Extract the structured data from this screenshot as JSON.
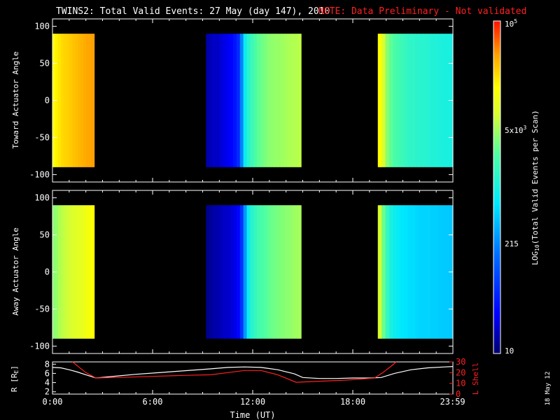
{
  "title": "TWINS2: Total Valid Events: 27 May (day 147), 2010",
  "note": "NOTE: Data Preliminary - Not validated",
  "date_stamp": "18 May 12",
  "colorbar": {
    "label": "LOG10(Total Valid Events per Scan)",
    "label_base": "LOG",
    "label_sub": "10",
    "label_rest": "(Total Valid Events per Scan)",
    "tick_labels": [
      "10",
      "215",
      "5x10^3",
      "10^5"
    ],
    "tick_values": [
      10,
      215,
      5000,
      100000
    ],
    "range": [
      10,
      100000
    ],
    "scale": "log"
  },
  "chart_data": [
    {
      "type": "heatmap",
      "name": "toward",
      "ylabel": "Toward Actuator Angle",
      "xlim": [
        0,
        24
      ],
      "ylim": [
        -110,
        110
      ],
      "y_ticks": [
        100,
        50,
        0,
        -50,
        -100
      ],
      "data_y_range": [
        -90,
        90
      ],
      "blocks": [
        {
          "x_start": 0.0,
          "x_end": 2.5,
          "log_values": [
            4.2,
            4.25,
            4.3,
            4.35,
            4.38,
            4.4,
            4.42,
            4.45,
            4.47,
            4.5,
            4.52,
            4.55,
            4.57,
            4.58,
            4.6
          ]
        },
        {
          "x_start": 9.2,
          "x_end": 14.9,
          "log_values": [
            1.2,
            1.25,
            1.3,
            1.28,
            1.35,
            1.4,
            1.45,
            1.5,
            1.6,
            1.75,
            2.3,
            2.9,
            3.1,
            3.25,
            3.35,
            3.45,
            3.5,
            3.55,
            3.6,
            3.62,
            3.65,
            3.65,
            3.68,
            3.7,
            3.72,
            3.74,
            3.75,
            3.78
          ]
        },
        {
          "x_start": 19.5,
          "x_end": 24.0,
          "log_values": [
            4.2,
            3.9,
            3.6,
            3.45,
            3.35,
            3.3,
            3.25,
            3.2,
            3.15,
            3.15,
            3.12,
            3.1,
            3.1,
            3.08,
            3.05,
            3.05,
            3.02,
            3.0,
            3.0,
            2.98
          ]
        }
      ]
    },
    {
      "type": "heatmap",
      "name": "away",
      "ylabel": "Away Actuator Angle",
      "xlim": [
        0,
        24
      ],
      "ylim": [
        -110,
        110
      ],
      "y_ticks": [
        100,
        50,
        0,
        -50,
        -100
      ],
      "data_y_range": [
        -90,
        90
      ],
      "blocks": [
        {
          "x_start": 0.0,
          "x_end": 2.5,
          "log_values": [
            3.6,
            3.65,
            3.72,
            3.78,
            3.82,
            3.85,
            3.88,
            3.92,
            3.95,
            3.98,
            4.0,
            4.05,
            4.1,
            4.15,
            4.2
          ]
        },
        {
          "x_start": 9.2,
          "x_end": 14.9,
          "log_values": [
            1.1,
            1.15,
            1.2,
            1.2,
            1.25,
            1.3,
            1.3,
            1.35,
            1.4,
            1.5,
            1.8,
            2.4,
            2.9,
            3.1,
            3.2,
            3.3,
            3.35,
            3.4,
            3.45,
            3.5,
            3.52,
            3.55,
            3.58,
            3.6,
            3.62,
            3.65,
            3.68,
            3.7
          ]
        },
        {
          "x_start": 19.5,
          "x_end": 24.0,
          "log_values": [
            3.9,
            3.5,
            3.2,
            3.0,
            2.9,
            2.85,
            2.8,
            2.78,
            2.75,
            2.75,
            2.72,
            2.7,
            2.7,
            2.7,
            2.68,
            2.68,
            2.66,
            2.65,
            2.65,
            2.64
          ]
        }
      ]
    },
    {
      "type": "line",
      "name": "orbit",
      "ylabel_left": "R [RE]",
      "ylabel_left_base": "R [R",
      "ylabel_left_sub": "E",
      "ylabel_left_end": "]",
      "ylabel_right": "L Shell",
      "xlabel": "Time (UT)",
      "xlim": [
        0,
        24
      ],
      "x_ticks": [
        0,
        6,
        12,
        18,
        23.983
      ],
      "x_tick_labels": [
        "0:00",
        "6:00",
        "12:00",
        "18:00",
        "23:59"
      ],
      "ylim_left": [
        1.5,
        8.5
      ],
      "y_ticks_left": [
        2,
        4,
        6,
        8
      ],
      "ylim_right": [
        0,
        30
      ],
      "y_ticks_right": [
        0,
        10,
        20,
        30
      ],
      "series": [
        {
          "name": "R",
          "axis": "left",
          "color": "#ffffff",
          "x": [
            0,
            0.5,
            1,
            1.5,
            2,
            2.6,
            3.5,
            5,
            6.5,
            8,
            9.5,
            10.5,
            11.5,
            12.5,
            13.5,
            14.5,
            15,
            16,
            17,
            18,
            19,
            19.7,
            20.5,
            21.5,
            22.5,
            23.5,
            24
          ],
          "y": [
            7.3,
            7.2,
            6.8,
            6.3,
            5.7,
            5.0,
            5.3,
            5.8,
            6.2,
            6.6,
            7.0,
            7.3,
            7.4,
            7.3,
            6.8,
            5.9,
            5.1,
            4.9,
            4.9,
            5.0,
            5.0,
            5.1,
            6.0,
            6.8,
            7.2,
            7.4,
            7.5
          ]
        },
        {
          "name": "L Shell",
          "axis": "right",
          "color": "#ff2020",
          "x": [
            1.2,
            1.6,
            2.0,
            2.6,
            4.0,
            6.0,
            8.0,
            9.5,
            10.5,
            11.5,
            12.5,
            13.5,
            14.6,
            16.0,
            17.5,
            18.5,
            19.3,
            19.8,
            20.3,
            20.6
          ],
          "y": [
            30,
            25,
            20,
            15,
            15.5,
            16.5,
            17.5,
            18,
            20,
            22,
            22,
            18,
            11,
            12,
            13,
            14,
            15,
            20,
            26,
            30
          ]
        }
      ]
    }
  ]
}
